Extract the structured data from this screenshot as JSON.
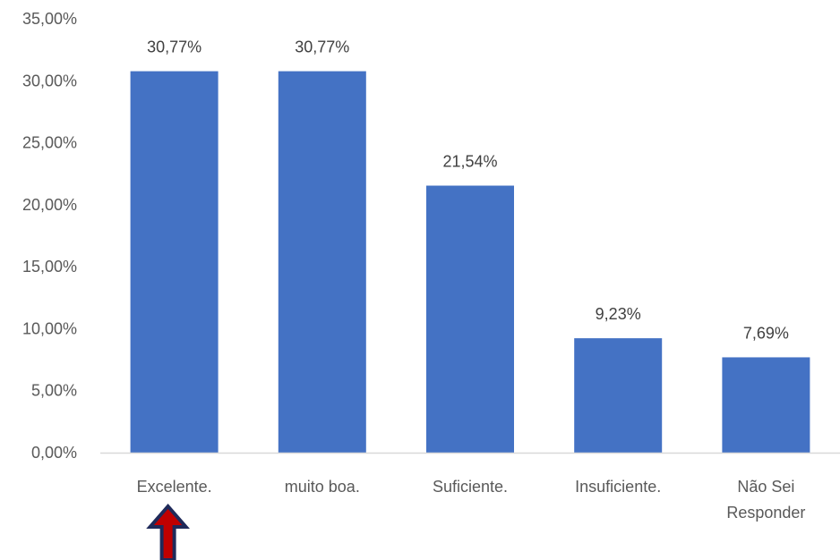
{
  "chart_data": {
    "type": "bar",
    "categories": [
      "Excelente.",
      "muito boa.",
      "Suficiente.",
      "Insuficiente.",
      "Não Sei Responder"
    ],
    "category_lines": [
      [
        "Excelente."
      ],
      [
        "muito boa."
      ],
      [
        "Suficiente."
      ],
      [
        "Insuficiente."
      ],
      [
        "Não Sei",
        "Responder"
      ]
    ],
    "values": [
      30.77,
      30.77,
      21.54,
      9.23,
      7.69
    ],
    "data_labels": [
      "30,77%",
      "30,77%",
      "21,54%",
      "9,23%",
      "7,69%"
    ],
    "y_ticks": [
      0,
      5,
      10,
      15,
      20,
      25,
      30,
      35
    ],
    "y_tick_labels": [
      "0,00%",
      "5,00%",
      "10,00%",
      "15,00%",
      "20,00%",
      "25,00%",
      "30,00%",
      "35,00%"
    ],
    "ylim": [
      0,
      35
    ],
    "title": "",
    "xlabel": "",
    "ylabel": "",
    "grid": false,
    "bar_color": "#4472C4",
    "axis_color": "#D9D9D9"
  },
  "annotation": {
    "icon": "arrow-up-icon",
    "points_to_category": "Excelente.",
    "fill_color": "#C00000",
    "outline_color": "#1F2A5A"
  }
}
